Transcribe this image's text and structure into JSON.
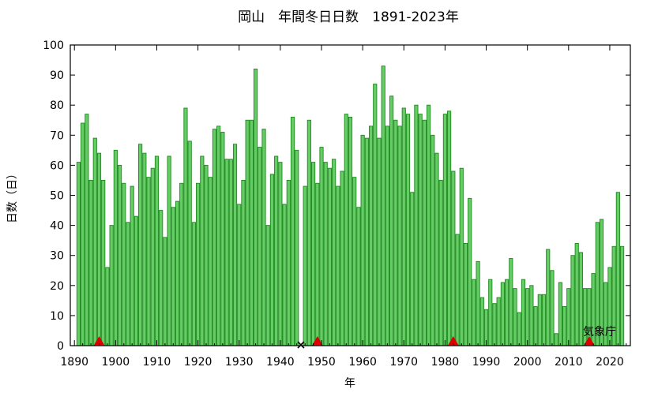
{
  "chart_data": {
    "type": "bar",
    "title": "岡山　年間冬日日数　1891-2023年",
    "xlabel": "年",
    "ylabel": "日数（日）",
    "credit": "気象庁",
    "xlim": [
      1889,
      2025
    ],
    "ylim": [
      0,
      100
    ],
    "x_ticks": [
      1890,
      1900,
      1910,
      1920,
      1930,
      1940,
      1950,
      1960,
      1970,
      1980,
      1990,
      2000,
      2010,
      2020
    ],
    "y_ticks": [
      0,
      10,
      20,
      30,
      40,
      50,
      60,
      70,
      80,
      90,
      100
    ],
    "grid": false,
    "bar_color": "#66cc66",
    "bar_edge_color": "#1e8a1e",
    "marker_color": "#dd0000",
    "x": [
      1891,
      1892,
      1893,
      1894,
      1895,
      1896,
      1897,
      1898,
      1899,
      1900,
      1901,
      1902,
      1903,
      1904,
      1905,
      1906,
      1907,
      1908,
      1909,
      1910,
      1911,
      1912,
      1913,
      1914,
      1915,
      1916,
      1917,
      1918,
      1919,
      1920,
      1921,
      1922,
      1923,
      1924,
      1925,
      1926,
      1927,
      1928,
      1929,
      1930,
      1931,
      1932,
      1933,
      1934,
      1935,
      1936,
      1937,
      1938,
      1939,
      1940,
      1941,
      1942,
      1943,
      1944,
      1945,
      1946,
      1947,
      1948,
      1949,
      1950,
      1951,
      1952,
      1953,
      1954,
      1955,
      1956,
      1957,
      1958,
      1959,
      1960,
      1961,
      1962,
      1963,
      1964,
      1965,
      1966,
      1967,
      1968,
      1969,
      1970,
      1971,
      1972,
      1973,
      1974,
      1975,
      1976,
      1977,
      1978,
      1979,
      1980,
      1981,
      1982,
      1983,
      1984,
      1985,
      1986,
      1987,
      1988,
      1989,
      1990,
      1991,
      1992,
      1993,
      1994,
      1995,
      1996,
      1997,
      1998,
      1999,
      2000,
      2001,
      2002,
      2003,
      2004,
      2005,
      2006,
      2007,
      2008,
      2009,
      2010,
      2011,
      2012,
      2013,
      2014,
      2015,
      2016,
      2017,
      2018,
      2019,
      2020,
      2021,
      2022,
      2023
    ],
    "values": [
      61,
      74,
      77,
      55,
      69,
      64,
      55,
      26,
      40,
      65,
      60,
      54,
      41,
      53,
      43,
      67,
      64,
      56,
      59,
      63,
      45,
      36,
      63,
      46,
      48,
      54,
      79,
      68,
      41,
      54,
      63,
      60,
      56,
      72,
      73,
      71,
      62,
      62,
      67,
      47,
      55,
      75,
      75,
      92,
      66,
      72,
      40,
      57,
      63,
      61,
      47,
      55,
      76,
      65,
      null,
      53,
      75,
      61,
      54,
      66,
      61,
      59,
      62,
      53,
      58,
      77,
      76,
      56,
      46,
      70,
      69,
      73,
      87,
      69,
      93,
      73,
      83,
      75,
      73,
      79,
      77,
      51,
      80,
      77,
      75,
      80,
      70,
      64,
      55,
      77,
      78,
      58,
      37,
      59,
      34,
      49,
      22,
      28,
      16,
      12,
      22,
      14,
      16,
      21,
      22,
      29,
      19,
      11,
      22,
      19,
      20,
      13,
      17,
      17,
      32,
      25,
      4,
      21,
      13,
      19,
      30,
      34,
      31,
      19,
      19,
      24,
      41,
      42,
      21,
      26,
      33,
      51,
      33
    ],
    "missing_markers": [
      1945
    ],
    "relocation_markers": [
      1896,
      1949,
      1982,
      2015
    ]
  }
}
